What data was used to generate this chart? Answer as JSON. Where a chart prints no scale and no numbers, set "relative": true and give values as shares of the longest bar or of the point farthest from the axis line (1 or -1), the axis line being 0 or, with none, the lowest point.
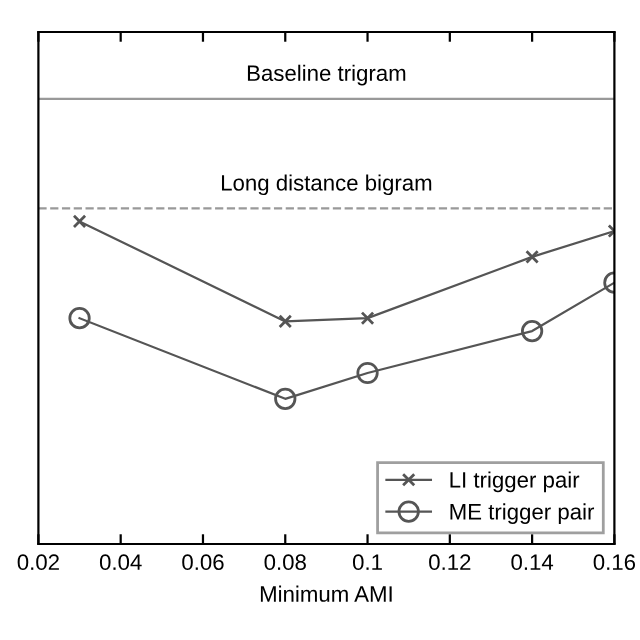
{
  "chart_data": {
    "type": "line",
    "relative": true,
    "xlabel": "Minimum AMI",
    "x": [
      0.03,
      0.08,
      0.1,
      0.14,
      0.16
    ],
    "xlim": [
      0.02,
      0.16
    ],
    "xticks": [
      0.02,
      0.04,
      0.06,
      0.08,
      0.1,
      0.12,
      0.14,
      0.16
    ],
    "series": [
      {
        "name": "LI trigger pair",
        "color": "#555555",
        "marker": "cross",
        "values": [
          1,
          0.69,
          0.7,
          0.89,
          0.97
        ]
      },
      {
        "name": "ME trigger pair",
        "color": "#555555",
        "marker": "circle",
        "values": [
          0.7,
          0.45,
          0.53,
          0.66,
          0.81
        ]
      }
    ],
    "ref_lines": [
      {
        "axis": "y",
        "value": 1.38,
        "label": "Baseline trigram",
        "color": "#999999",
        "line_style": "solid"
      },
      {
        "axis": "y",
        "value": 1.04,
        "label": "Long distance bigram",
        "color": "#999999",
        "line_style": "dashed"
      }
    ],
    "legend": "bottom right",
    "grid": false
  }
}
